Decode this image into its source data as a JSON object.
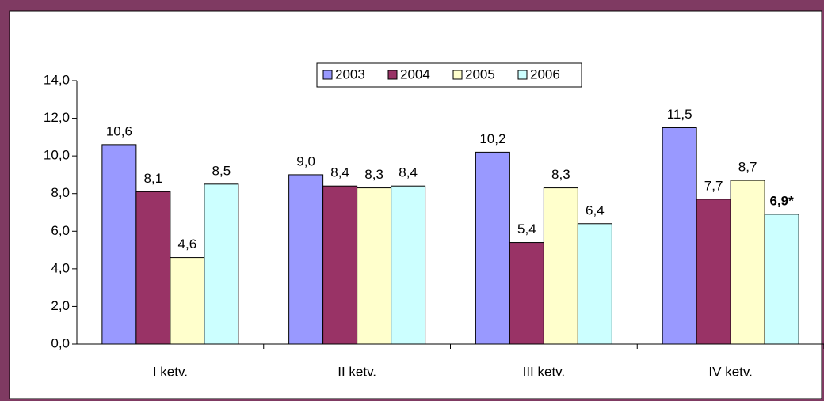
{
  "chart_data": {
    "type": "bar",
    "categories": [
      "I ketv.",
      "II ketv.",
      "III ketv.",
      "IV ketv."
    ],
    "series": [
      {
        "name": "2003",
        "color": "#9999ff",
        "values": [
          10.6,
          9.0,
          10.2,
          11.5
        ],
        "value_labels": [
          "10,6",
          "9,0",
          "10,2",
          "11,5"
        ]
      },
      {
        "name": "2004",
        "color": "#993366",
        "values": [
          8.1,
          8.4,
          5.4,
          7.7
        ],
        "value_labels": [
          "8,1",
          "8,4",
          "5,4",
          "7,7"
        ]
      },
      {
        "name": "2005",
        "color": "#ffffcc",
        "values": [
          4.6,
          8.3,
          8.3,
          8.7
        ],
        "value_labels": [
          "4,6",
          "8,3",
          "8,3",
          "8,7"
        ]
      },
      {
        "name": "2006",
        "color": "#ccffff",
        "values": [
          8.5,
          8.4,
          6.4,
          6.9
        ],
        "value_labels": [
          "8,5",
          "8,4",
          "6,4",
          "6,9*"
        ]
      }
    ],
    "ylim": [
      0,
      14
    ],
    "yticks": [
      {
        "value": 0,
        "label": "0,0"
      },
      {
        "value": 2,
        "label": "2,0"
      },
      {
        "value": 4,
        "label": "4,0"
      },
      {
        "value": 6,
        "label": "6,0"
      },
      {
        "value": 8,
        "label": "8,0"
      },
      {
        "value": 10,
        "label": "10,0"
      },
      {
        "value": 12,
        "label": "12,0"
      },
      {
        "value": 14,
        "label": "14,0"
      }
    ],
    "grid": false,
    "legend": "top"
  }
}
